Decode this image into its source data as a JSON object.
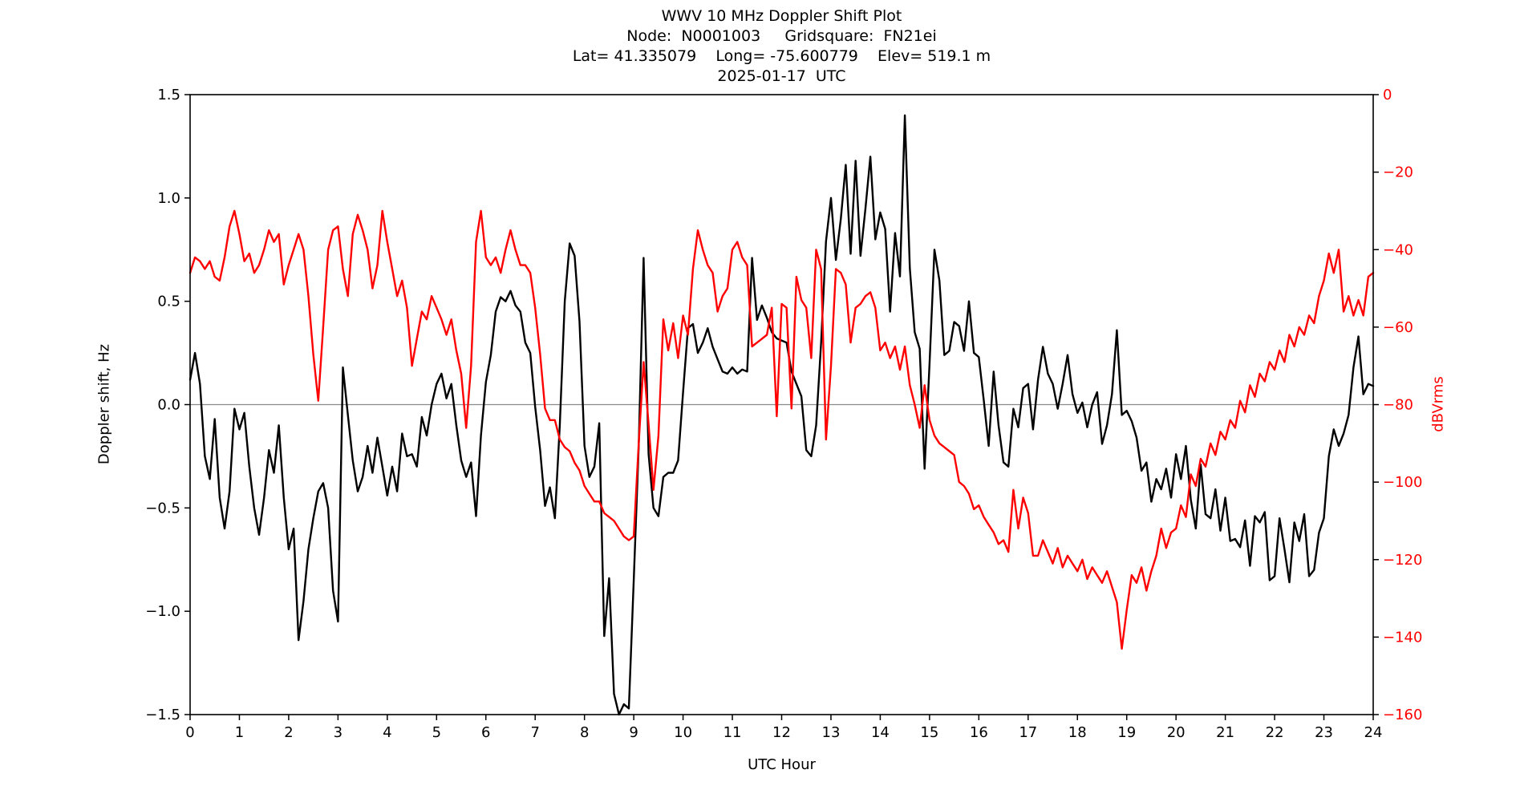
{
  "title": {
    "line1": "WWV 10 MHz Doppler Shift Plot",
    "line2": "Node:  N0001003     Gridsquare:  FN21ei",
    "line3": "Lat= 41.335079    Long= -75.600779    Elev= 519.1 m",
    "line4": "2025-01-17  UTC"
  },
  "axis_labels": {
    "left": "Doppler shift, Hz",
    "right": "dBVrms",
    "bottom": "UTC Hour"
  },
  "colors": {
    "doppler_line": "#000000",
    "dbvrms_line": "#ff0000",
    "zero_line": "#8a8a8a",
    "spine": "#000000",
    "right_tick_label": "#ff0000"
  },
  "chart_data": {
    "type": "line",
    "title": "WWV 10 MHz Doppler Shift Plot",
    "xlabel": "UTC Hour",
    "ylabel_left": "Doppler shift, Hz",
    "ylabel_right": "dBVrms",
    "x_start": 0,
    "x_step": 0.1,
    "xlim": [
      0,
      24
    ],
    "ylim_left": [
      -1.5,
      1.5
    ],
    "ylim_right": [
      -160,
      0
    ],
    "grid": false,
    "legend": "none",
    "zero_reference_line_hz": 0.0,
    "xtick_vals": [
      0,
      1,
      2,
      3,
      4,
      5,
      6,
      7,
      8,
      9,
      10,
      11,
      12,
      13,
      14,
      15,
      16,
      17,
      18,
      19,
      20,
      21,
      22,
      23,
      24
    ],
    "xtick_labels": [
      "0",
      "1",
      "2",
      "3",
      "4",
      "5",
      "6",
      "7",
      "8",
      "9",
      "10",
      "11",
      "12",
      "13",
      "14",
      "15",
      "16",
      "17",
      "18",
      "19",
      "20",
      "21",
      "22",
      "23",
      "24"
    ],
    "ytick_vals_left": [
      1.5,
      1.0,
      0.5,
      0.0,
      -0.5,
      -1.0,
      -1.5
    ],
    "ytick_labels_left": [
      "1.5",
      "1.0",
      "0.5",
      "0.0",
      "−0.5",
      "−1.0",
      "−1.5"
    ],
    "ytick_vals_right": [
      0,
      -20,
      -40,
      -60,
      -80,
      -100,
      -120,
      -140,
      -160
    ],
    "ytick_labels_right": [
      "0",
      "−20",
      "−40",
      "−60",
      "−80",
      "−100",
      "−120",
      "−140",
      "−160"
    ],
    "series": [
      {
        "name": "Doppler shift (Hz)",
        "axis": "left",
        "color": "#000000",
        "values": [
          0.12,
          0.25,
          0.1,
          -0.25,
          -0.36,
          -0.07,
          -0.45,
          -0.6,
          -0.42,
          -0.02,
          -0.12,
          -0.04,
          -0.3,
          -0.5,
          -0.63,
          -0.45,
          -0.22,
          -0.33,
          -0.1,
          -0.45,
          -0.7,
          -0.6,
          -1.14,
          -0.95,
          -0.7,
          -0.55,
          -0.42,
          -0.38,
          -0.5,
          -0.9,
          -1.05,
          0.18,
          -0.05,
          -0.27,
          -0.42,
          -0.35,
          -0.2,
          -0.33,
          -0.16,
          -0.3,
          -0.44,
          -0.3,
          -0.42,
          -0.14,
          -0.25,
          -0.24,
          -0.3,
          -0.06,
          -0.15,
          0.0,
          0.1,
          0.15,
          0.03,
          0.1,
          -0.1,
          -0.27,
          -0.35,
          -0.28,
          -0.54,
          -0.15,
          0.11,
          0.24,
          0.45,
          0.52,
          0.5,
          0.55,
          0.48,
          0.45,
          0.3,
          0.25,
          -0.01,
          -0.22,
          -0.49,
          -0.4,
          -0.55,
          -0.1,
          0.5,
          0.78,
          0.72,
          0.4,
          -0.2,
          -0.35,
          -0.3,
          -0.09,
          -1.12,
          -0.84,
          -1.4,
          -1.5,
          -1.45,
          -1.47,
          -0.85,
          -0.2,
          0.71,
          -0.24,
          -0.5,
          -0.54,
          -0.35,
          -0.33,
          -0.33,
          -0.27,
          0.06,
          0.37,
          0.39,
          0.25,
          0.3,
          0.37,
          0.28,
          0.22,
          0.16,
          0.15,
          0.18,
          0.15,
          0.17,
          0.16,
          0.71,
          0.41,
          0.48,
          0.42,
          0.35,
          0.32,
          0.31,
          0.3,
          0.16,
          0.1,
          0.04,
          -0.22,
          -0.25,
          -0.1,
          0.3,
          0.79,
          1.0,
          0.7,
          0.9,
          1.16,
          0.73,
          1.18,
          0.72,
          0.95,
          1.2,
          0.8,
          0.93,
          0.85,
          0.45,
          0.83,
          0.62,
          1.4,
          0.66,
          0.35,
          0.27,
          -0.31,
          0.2,
          0.75,
          0.6,
          0.24,
          0.26,
          0.4,
          0.38,
          0.26,
          0.5,
          0.25,
          0.23,
          0.02,
          -0.2,
          0.16,
          -0.1,
          -0.28,
          -0.3,
          -0.02,
          -0.11,
          0.08,
          0.1,
          -0.12,
          0.12,
          0.28,
          0.15,
          0.1,
          -0.02,
          0.1,
          0.24,
          0.05,
          -0.04,
          0.01,
          -0.11,
          0.0,
          0.06,
          -0.19,
          -0.1,
          0.05,
          0.36,
          -0.05,
          -0.03,
          -0.08,
          -0.16,
          -0.32,
          -0.28,
          -0.47,
          -0.36,
          -0.41,
          -0.31,
          -0.45,
          -0.24,
          -0.36,
          -0.2,
          -0.46,
          -0.6,
          -0.29,
          -0.53,
          -0.55,
          -0.41,
          -0.61,
          -0.45,
          -0.66,
          -0.65,
          -0.69,
          -0.56,
          -0.78,
          -0.54,
          -0.57,
          -0.52,
          -0.85,
          -0.83,
          -0.55,
          -0.7,
          -0.86,
          -0.57,
          -0.66,
          -0.53,
          -0.83,
          -0.8,
          -0.62,
          -0.55,
          -0.25,
          -0.12,
          -0.2,
          -0.14,
          -0.05,
          0.18,
          0.33,
          0.05,
          0.1,
          0.09
        ]
      },
      {
        "name": "dBVrms",
        "axis": "right",
        "color": "#ff0000",
        "values": [
          -46,
          -42,
          -43,
          -45,
          -43,
          -47,
          -48,
          -42,
          -34,
          -30,
          -36,
          -43,
          -41,
          -46,
          -44,
          -40,
          -35,
          -38,
          -36,
          -49,
          -44,
          -40,
          -36,
          -40,
          -52,
          -67,
          -79,
          -60,
          -40,
          -35,
          -34,
          -45,
          -52,
          -36,
          -31,
          -35,
          -40,
          -50,
          -44,
          -30,
          -38,
          -45,
          -52,
          -48,
          -55,
          -70,
          -63,
          -56,
          -58,
          -52,
          -55,
          -58,
          -62,
          -58,
          -66,
          -72,
          -86,
          -70,
          -38,
          -30,
          -42,
          -44,
          -42,
          -46,
          -40,
          -35,
          -40,
          -44,
          -44,
          -46,
          -55,
          -67,
          -81,
          -84,
          -84,
          -89,
          -91,
          -92,
          -95,
          -97,
          -101,
          -103,
          -105,
          -105,
          -108,
          -109,
          -110,
          -112,
          -114,
          -115,
          -114,
          -90,
          -69,
          -85,
          -102,
          -88,
          -58,
          -66,
          -59,
          -68,
          -57,
          -62,
          -45,
          -35,
          -40,
          -44,
          -46,
          -56,
          -52,
          -50,
          -40,
          -38,
          -42,
          -44,
          -65,
          -64,
          -63,
          -62,
          -55,
          -83,
          -54,
          -55,
          -81,
          -47,
          -53,
          -55,
          -68,
          -40,
          -45,
          -89,
          -70,
          -45,
          -46,
          -49,
          -64,
          -55,
          -54,
          -52,
          -51,
          -55,
          -66,
          -64,
          -68,
          -65,
          -71,
          -65,
          -75,
          -80,
          -86,
          -75,
          -84,
          -88,
          -90,
          -91,
          -92,
          -93,
          -100,
          -101,
          -103,
          -107,
          -106,
          -109,
          -111,
          -113,
          -116,
          -115,
          -118,
          -102,
          -112,
          -104,
          -108,
          -119,
          -119,
          -115,
          -118,
          -121,
          -117,
          -122,
          -119,
          -121,
          -123,
          -120,
          -125,
          -122,
          -124,
          -126,
          -123,
          -127,
          -131,
          -143,
          -133,
          -124,
          -126,
          -122,
          -128,
          -123,
          -119,
          -112,
          -117,
          -113,
          -112,
          -106,
          -109,
          -98,
          -101,
          -94,
          -96,
          -90,
          -93,
          -87,
          -89,
          -84,
          -86,
          -79,
          -82,
          -75,
          -78,
          -72,
          -74,
          -69,
          -71,
          -66,
          -69,
          -62,
          -65,
          -60,
          -62,
          -57,
          -59,
          -52,
          -48,
          -41,
          -46,
          -40,
          -56,
          -52,
          -57,
          -53,
          -57,
          -47,
          -46
        ]
      }
    ]
  }
}
